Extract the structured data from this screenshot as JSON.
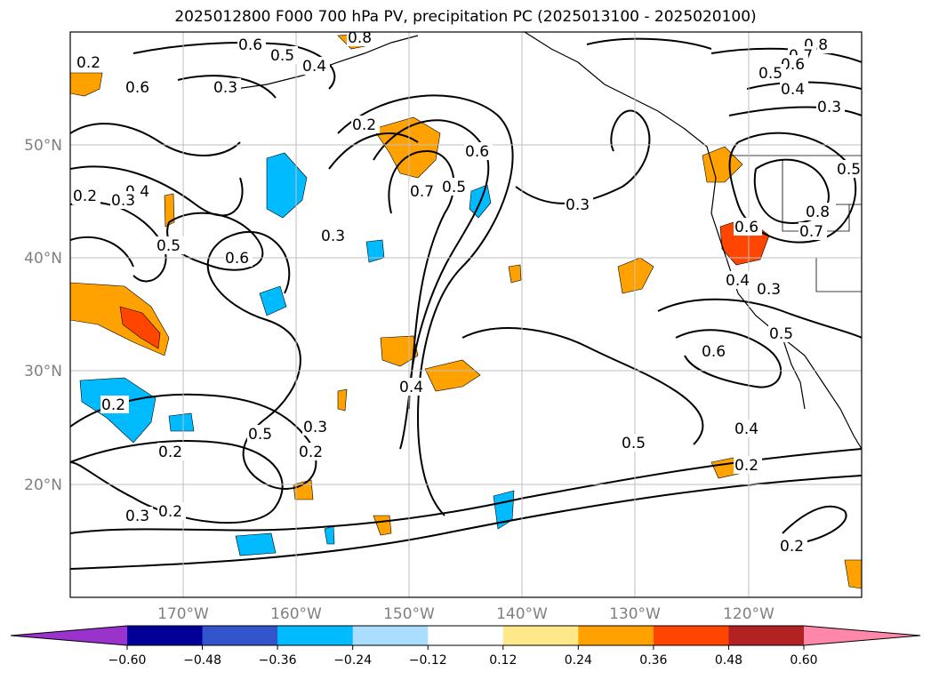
{
  "title": "2025012800 F000 700 hPa PV, precipitation PC (2025013100 - 2025020100)",
  "map": {
    "lon_ticks": [
      "170°W",
      "160°W",
      "150°W",
      "140°W",
      "130°W",
      "120°W"
    ],
    "lat_ticks": [
      "50°N",
      "40°N",
      "30°N",
      "20°N"
    ],
    "contour_labels": [
      "0.6",
      "0.5",
      "0.4",
      "0.3",
      "0.8",
      "0.6",
      "0.8",
      "0.7",
      "0.6",
      "0.5",
      "0.4",
      "0.2",
      "0.2",
      "0.7",
      "0.5",
      "0.6",
      "0.3",
      "0.5",
      "0.4",
      "0.3",
      "0.2",
      "0.3",
      "0.6",
      "0.3",
      "0.6",
      "0.8",
      "0.7",
      "0.4",
      "0.3",
      "0.5",
      "0.6",
      "0.4",
      "0.5",
      "0.5",
      "0.2",
      "0.2",
      "0.3",
      "0.2",
      "0.2",
      "0.4",
      "0.2",
      "0.3",
      "0.2",
      "0.5"
    ]
  },
  "colorbar": {
    "colors": [
      "#9933cc",
      "#000099",
      "#3355cc",
      "#00bbff",
      "#aaddff",
      "#ffffff",
      "#ffe88a",
      "#ffa200",
      "#ff4500",
      "#b22222",
      "#ff88aa"
    ],
    "labels": [
      "−0.60",
      "−0.48",
      "−0.36",
      "−0.24",
      "−0.12",
      "0.12",
      "0.24",
      "0.36",
      "0.48",
      "0.60"
    ]
  }
}
